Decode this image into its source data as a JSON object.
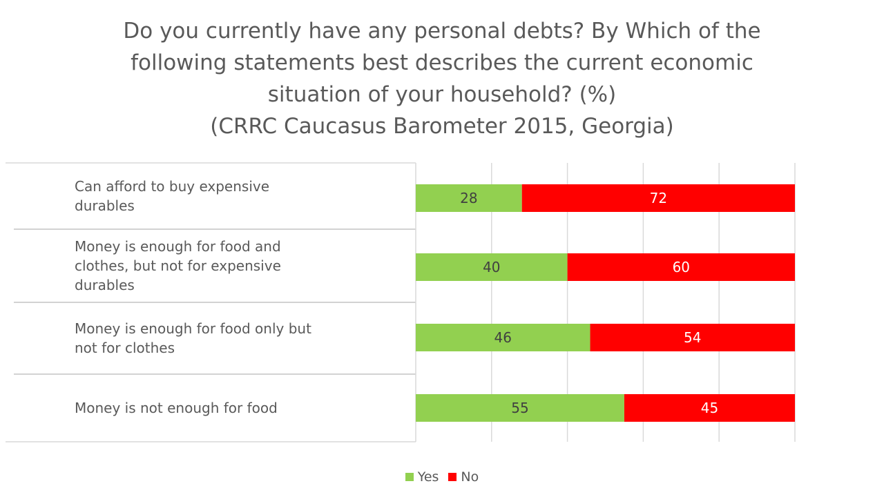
{
  "chart_data": {
    "type": "bar",
    "orientation": "horizontal",
    "stacked": true,
    "title_lines": [
      "Do you currently have any personal debts? By Which of the",
      "following statements best describes the current economic",
      "situation of your household? (%)",
      "(CRRC Caucasus Barometer 2015, Georgia)"
    ],
    "categories": [
      "Can afford to buy expensive durables",
      "Money is enough for food and clothes, but not for expensive durables",
      "Money is enough for food only but not for clothes",
      "Money is not enough for food"
    ],
    "category_label_lines": [
      [
        "Can afford to buy expensive",
        "durables"
      ],
      [
        "Money is enough for food and",
        "clothes, but not for expensive",
        "durables"
      ],
      [
        "Money is enough for food only but",
        "not for clothes"
      ],
      [
        "Money is not enough for food"
      ]
    ],
    "series": [
      {
        "name": "Yes",
        "color": "#92d050",
        "values": [
          28,
          40,
          46,
          55
        ]
      },
      {
        "name": "No",
        "color": "#ff0000",
        "values": [
          72,
          60,
          54,
          45
        ]
      }
    ],
    "xlim": [
      0,
      100
    ],
    "grid": true,
    "legend": "bottom-center"
  }
}
